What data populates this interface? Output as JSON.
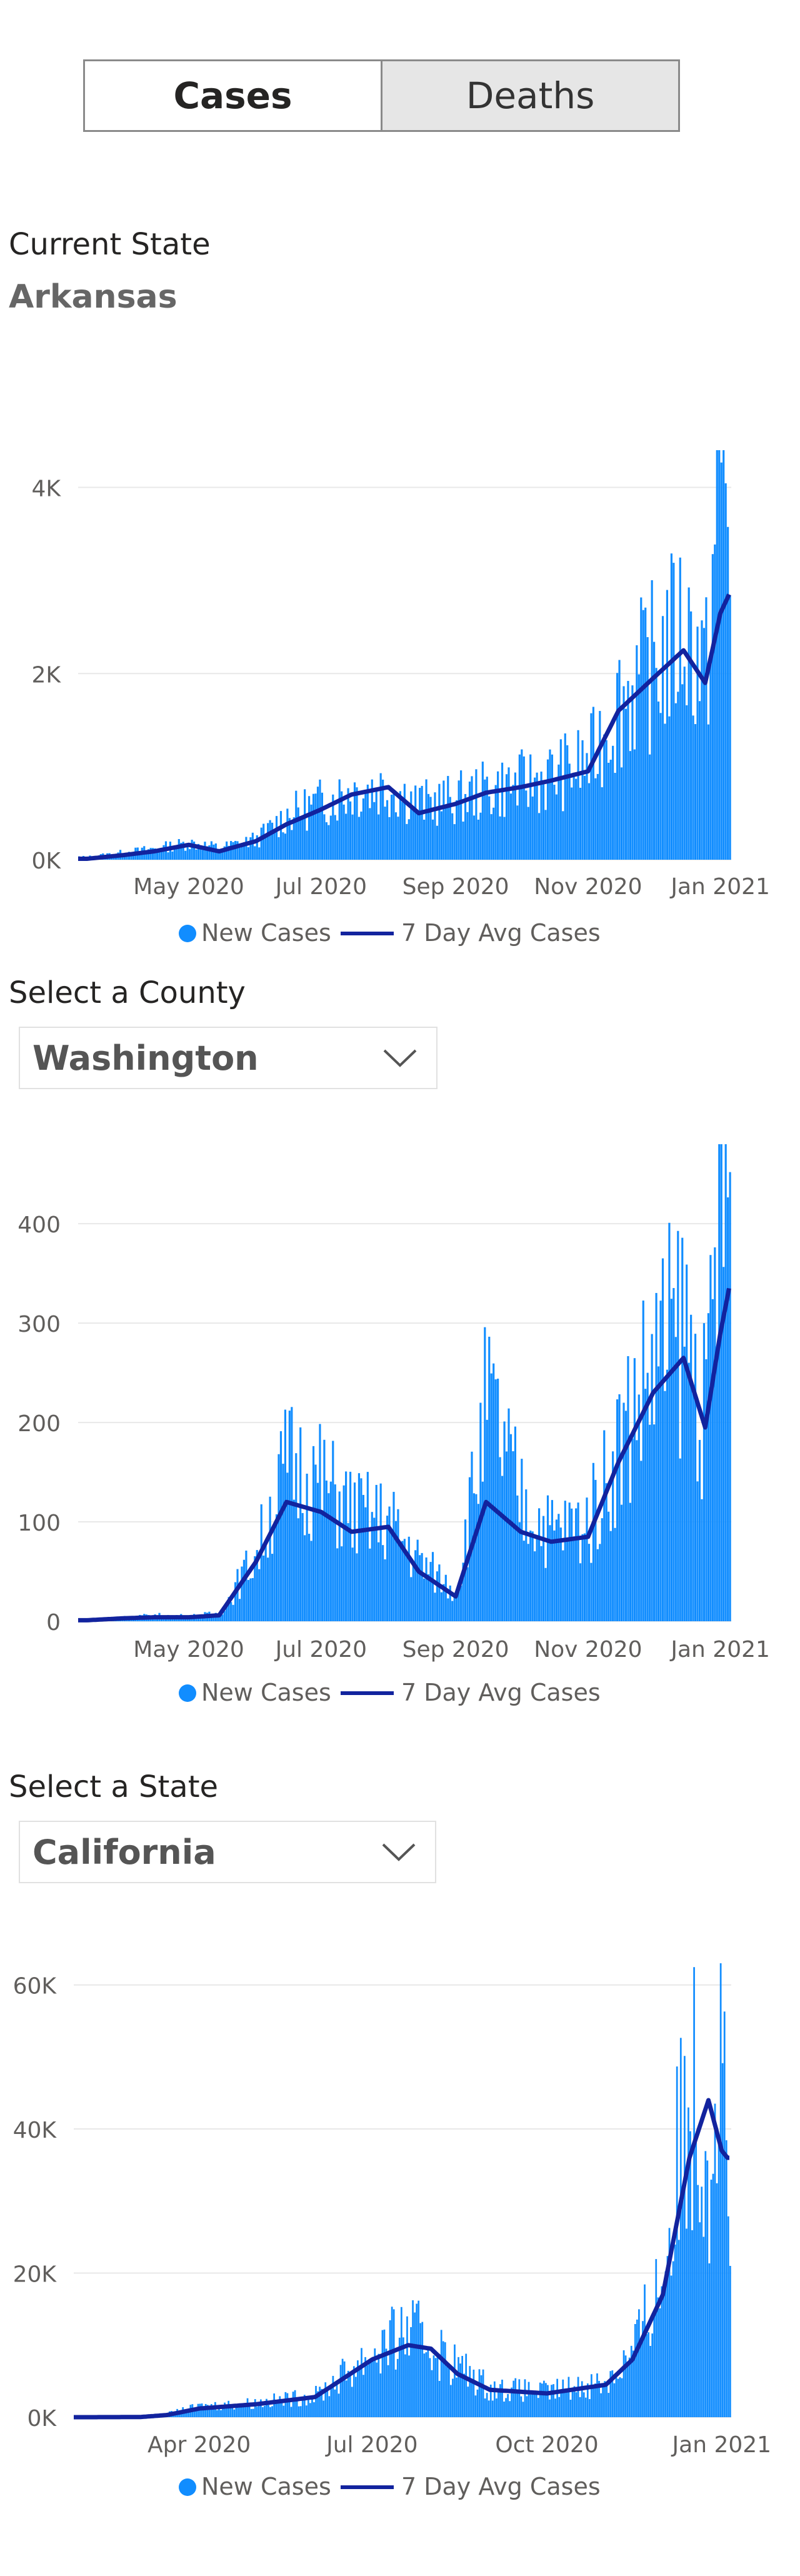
{
  "toggle": {
    "cases_label": "Cases",
    "deaths_label": "Deaths",
    "active": "Cases"
  },
  "current_state": {
    "label": "Current State",
    "value": "Arkansas"
  },
  "county_select": {
    "label": "Select a County",
    "value": "Washington"
  },
  "state_select": {
    "label": "Select a State",
    "value": "California"
  },
  "colors": {
    "bar": "#118DFF",
    "line": "#12239E",
    "grid": "#e8e8e8",
    "tick": "#605E5C"
  },
  "chart_data": [
    {
      "type": "bar",
      "title": "",
      "x_start": "2020-03-11",
      "x_end": "2021-01-06",
      "xticks": [
        "May 2020",
        "Jul 2020",
        "Sep 2020",
        "Nov 2020",
        "Jan 2021"
      ],
      "ylim": [
        0,
        4400
      ],
      "yticks": [
        "0K",
        "2K",
        "4K"
      ],
      "ytick_values": [
        0,
        2000,
        4000
      ],
      "legend": [
        "New Cases",
        "7 Day Avg Cases"
      ],
      "series": [
        {
          "name": "New Cases",
          "type": "bar",
          "x": [
            "2020-03-15",
            "2020-04-01",
            "2020-04-15",
            "2020-05-01",
            "2020-05-15",
            "2020-06-01",
            "2020-06-15",
            "2020-07-01",
            "2020-07-15",
            "2020-08-01",
            "2020-08-15",
            "2020-09-01",
            "2020-09-15",
            "2020-10-01",
            "2020-10-15",
            "2020-11-01",
            "2020-11-15",
            "2020-12-01",
            "2020-12-15",
            "2020-12-25",
            "2021-01-01",
            "2021-01-05"
          ],
          "values": [
            30,
            80,
            120,
            180,
            130,
            220,
            480,
            620,
            750,
            780,
            600,
            650,
            750,
            820,
            900,
            1050,
            1700,
            2100,
            2500,
            2000,
            4300,
            3800
          ]
        },
        {
          "name": "7 Day Avg Cases",
          "type": "line",
          "x": [
            "2020-03-15",
            "2020-04-01",
            "2020-04-15",
            "2020-05-01",
            "2020-05-15",
            "2020-06-01",
            "2020-06-15",
            "2020-07-01",
            "2020-07-15",
            "2020-08-01",
            "2020-08-15",
            "2020-09-01",
            "2020-09-15",
            "2020-10-01",
            "2020-10-15",
            "2020-11-01",
            "2020-11-15",
            "2020-12-01",
            "2020-12-15",
            "2020-12-25",
            "2021-01-01",
            "2021-01-05"
          ],
          "values": [
            10,
            50,
            90,
            160,
            90,
            200,
            380,
            540,
            700,
            780,
            500,
            600,
            720,
            780,
            850,
            950,
            1600,
            1950,
            2250,
            1900,
            2650,
            2850
          ]
        }
      ]
    },
    {
      "type": "bar",
      "title": "",
      "x_start": "2020-03-11",
      "x_end": "2021-01-06",
      "xticks": [
        "May 2020",
        "Jul 2020",
        "Sep 2020",
        "Nov 2020",
        "Jan 2021"
      ],
      "ylim": [
        0,
        480
      ],
      "yticks": [
        "0",
        "100",
        "200",
        "300",
        "400"
      ],
      "ytick_values": [
        0,
        100,
        200,
        300,
        400
      ],
      "legend": [
        "New Cases",
        "7 Day Avg Cases"
      ],
      "series": [
        {
          "name": "New Cases",
          "type": "bar",
          "x": [
            "2020-03-15",
            "2020-04-01",
            "2020-04-15",
            "2020-05-01",
            "2020-05-15",
            "2020-06-01",
            "2020-06-15",
            "2020-07-01",
            "2020-07-15",
            "2020-08-01",
            "2020-08-15",
            "2020-09-01",
            "2020-09-15",
            "2020-10-01",
            "2020-10-15",
            "2020-11-01",
            "2020-11-15",
            "2020-12-01",
            "2020-12-15",
            "2020-12-25",
            "2021-01-01",
            "2021-01-05"
          ],
          "values": [
            2,
            4,
            6,
            5,
            8,
            70,
            160,
            140,
            110,
            100,
            60,
            30,
            220,
            120,
            90,
            100,
            180,
            260,
            300,
            200,
            460,
            420
          ]
        },
        {
          "name": "7 Day Avg Cases",
          "type": "line",
          "x": [
            "2020-03-15",
            "2020-04-01",
            "2020-04-15",
            "2020-05-01",
            "2020-05-15",
            "2020-06-01",
            "2020-06-15",
            "2020-07-01",
            "2020-07-15",
            "2020-08-01",
            "2020-08-15",
            "2020-09-01",
            "2020-09-15",
            "2020-10-01",
            "2020-10-15",
            "2020-11-01",
            "2020-11-15",
            "2020-12-01",
            "2020-12-15",
            "2020-12-25",
            "2021-01-01",
            "2021-01-05"
          ],
          "values": [
            1,
            3,
            4,
            4,
            6,
            60,
            120,
            110,
            90,
            95,
            50,
            25,
            120,
            90,
            80,
            85,
            160,
            230,
            265,
            195,
            290,
            335
          ]
        }
      ]
    },
    {
      "type": "bar",
      "title": "",
      "x_start": "2020-01-26",
      "x_end": "2021-01-06",
      "xticks": [
        "Apr 2020",
        "Jul 2020",
        "Oct 2020",
        "Jan 2021"
      ],
      "ylim": [
        0,
        63000
      ],
      "yticks": [
        "0K",
        "20K",
        "40K",
        "60K"
      ],
      "ytick_values": [
        0,
        20000,
        40000,
        60000
      ],
      "legend": [
        "New Cases",
        "7 Day Avg Cases"
      ],
      "series": [
        {
          "name": "New Cases",
          "type": "bar",
          "x": [
            "2020-02-01",
            "2020-03-01",
            "2020-03-15",
            "2020-04-01",
            "2020-05-01",
            "2020-06-01",
            "2020-07-01",
            "2020-07-20",
            "2020-08-01",
            "2020-08-15",
            "2020-09-01",
            "2020-10-01",
            "2020-11-01",
            "2020-11-15",
            "2020-12-01",
            "2020-12-15",
            "2020-12-25",
            "2021-01-01",
            "2021-01-04"
          ],
          "values": [
            0,
            50,
            500,
            1500,
            2000,
            3000,
            9000,
            12000,
            10000,
            7000,
            4000,
            3500,
            5000,
            9000,
            20000,
            48000,
            38000,
            55000,
            30000
          ]
        },
        {
          "name": "7 Day Avg Cases",
          "type": "line",
          "x": [
            "2020-02-01",
            "2020-03-01",
            "2020-03-15",
            "2020-04-01",
            "2020-05-01",
            "2020-06-01",
            "2020-07-01",
            "2020-07-20",
            "2020-08-01",
            "2020-08-15",
            "2020-09-01",
            "2020-10-01",
            "2020-11-01",
            "2020-11-15",
            "2020-12-01",
            "2020-12-15",
            "2020-12-25",
            "2021-01-01",
            "2021-01-04"
          ],
          "values": [
            0,
            20,
            300,
            1200,
            1800,
            2800,
            8000,
            10000,
            9500,
            6000,
            3800,
            3300,
            4500,
            8000,
            17000,
            36000,
            44000,
            37000,
            36000
          ]
        }
      ]
    }
  ]
}
